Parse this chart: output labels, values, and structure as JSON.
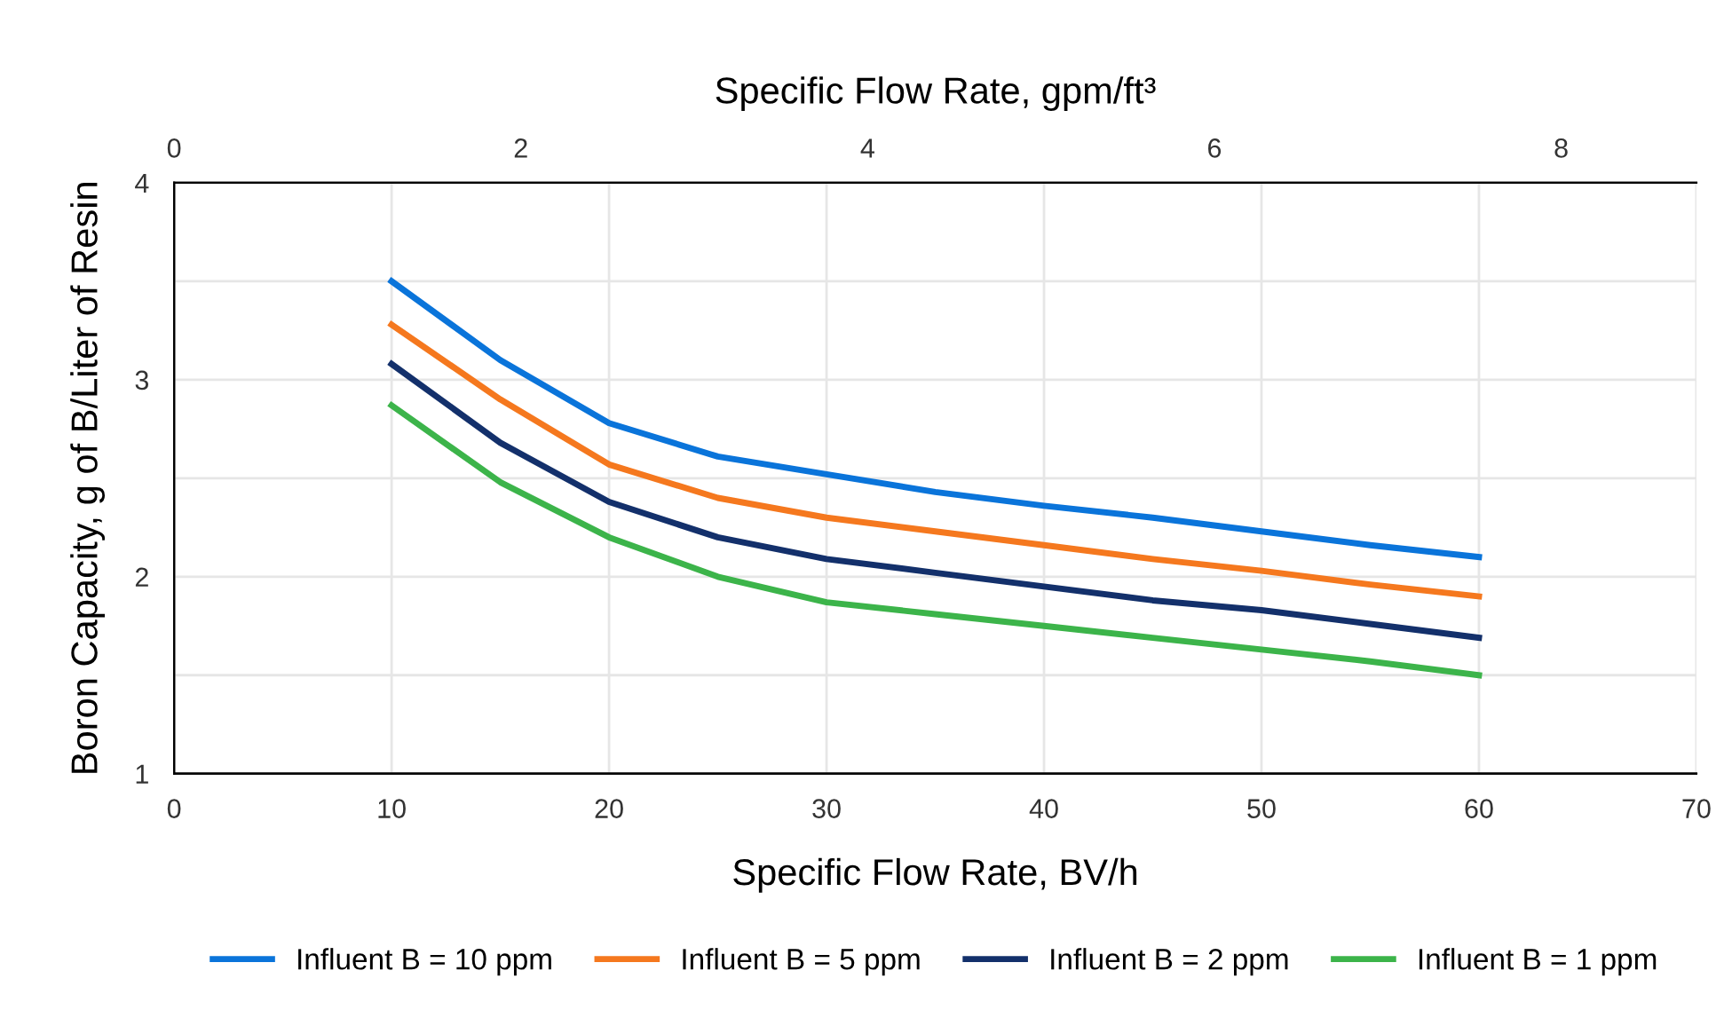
{
  "chart_data": {
    "type": "line",
    "xlabel": "Specific Flow Rate, BV/h",
    "x2label": "Specific Flow Rate, gpm/ft³",
    "ylabel": "Boron Capacity, g of B/Liter of Resin",
    "x": [
      10,
      15,
      20,
      25,
      30,
      35,
      40,
      45,
      50,
      55,
      60
    ],
    "series": [
      {
        "name": "Influent B = 10 ppm",
        "color": "#0a74da",
        "values": [
          3.5,
          3.1,
          2.78,
          2.61,
          2.52,
          2.43,
          2.36,
          2.3,
          2.23,
          2.16,
          2.1
        ]
      },
      {
        "name": "Influent B = 5 ppm",
        "color": "#f5781e",
        "values": [
          3.28,
          2.9,
          2.57,
          2.4,
          2.3,
          2.23,
          2.16,
          2.09,
          2.03,
          1.96,
          1.9
        ]
      },
      {
        "name": "Influent B = 2 ppm",
        "color": "#13306b",
        "values": [
          3.08,
          2.68,
          2.38,
          2.2,
          2.09,
          2.02,
          1.95,
          1.88,
          1.83,
          1.76,
          1.69
        ]
      },
      {
        "name": "Influent B = 1 ppm",
        "color": "#3cb44a",
        "values": [
          2.87,
          2.48,
          2.2,
          2.0,
          1.87,
          1.81,
          1.75,
          1.69,
          1.63,
          1.57,
          1.5
        ]
      }
    ],
    "xlim": [
      0,
      70
    ],
    "xticks": [
      0,
      10,
      20,
      30,
      40,
      50,
      60,
      70
    ],
    "x2lim": [
      0,
      8.78
    ],
    "x2ticks": [
      0,
      2,
      4,
      6,
      8
    ],
    "ylim": [
      1,
      4
    ],
    "yticks": [
      1,
      {
        "value": 1.5,
        "label": null
      },
      2,
      {
        "value": 2.5,
        "label": null
      },
      3,
      {
        "value": 3.5,
        "label": null
      },
      4
    ],
    "grid": true,
    "legend": "bottom",
    "marker": "none",
    "line_style": "solid"
  }
}
